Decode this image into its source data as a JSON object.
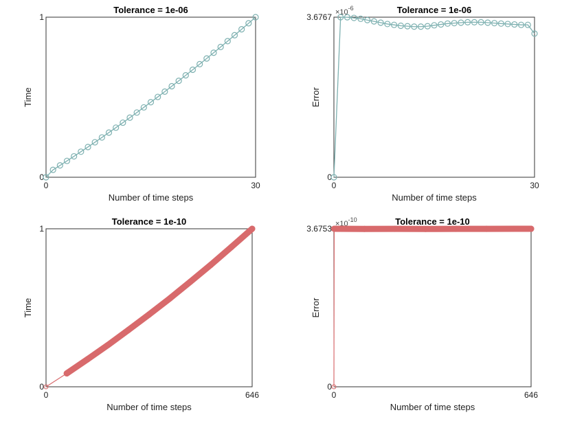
{
  "chart_data": [
    {
      "type": "line",
      "title": "Tolerance = 1e-06",
      "xlabel": "Number of time steps",
      "ylabel": "Time",
      "xlim": [
        0,
        30
      ],
      "ylim": [
        0,
        1
      ],
      "xticks": [
        "0",
        "30"
      ],
      "yticks": [
        "0",
        "1"
      ],
      "color": "#7db0b0",
      "marker": "circle",
      "x": [
        0,
        1,
        2,
        3,
        4,
        5,
        6,
        7,
        8,
        9,
        10,
        11,
        12,
        13,
        14,
        15,
        16,
        17,
        18,
        19,
        20,
        21,
        22,
        23,
        24,
        25,
        26,
        27,
        28,
        29,
        30
      ],
      "y": [
        0,
        0.046,
        0.0739,
        0.1021,
        0.1307,
        0.1597,
        0.189,
        0.2186,
        0.2487,
        0.2791,
        0.3098,
        0.3409,
        0.3724,
        0.4042,
        0.4364,
        0.4689,
        0.5018,
        0.535,
        0.5686,
        0.6026,
        0.6369,
        0.6716,
        0.7066,
        0.742,
        0.7778,
        0.8139,
        0.8504,
        0.8872,
        0.9244,
        0.9619,
        1.0
      ]
    },
    {
      "type": "line",
      "title": "Tolerance = 1e-06",
      "xlabel": "Number of time steps",
      "ylabel": "Error",
      "xlim": [
        0,
        30
      ],
      "ylim": [
        0,
        3.6767
      ],
      "xticks": [
        "0",
        "30"
      ],
      "yticks": [
        "0",
        "3.6767"
      ],
      "exponent_base": "×10",
      "exponent": "-6",
      "color": "#7db0b0",
      "marker": "circle",
      "x": [
        0,
        1,
        2,
        3,
        4,
        5,
        6,
        7,
        8,
        9,
        10,
        11,
        12,
        13,
        14,
        15,
        16,
        17,
        18,
        19,
        20,
        21,
        22,
        23,
        24,
        25,
        26,
        27,
        28,
        29,
        30
      ],
      "y": [
        0,
        3.677,
        3.675,
        3.66,
        3.64,
        3.61,
        3.58,
        3.55,
        3.52,
        3.5,
        3.48,
        3.47,
        3.46,
        3.46,
        3.47,
        3.49,
        3.51,
        3.53,
        3.54,
        3.55,
        3.56,
        3.56,
        3.56,
        3.55,
        3.54,
        3.53,
        3.52,
        3.51,
        3.5,
        3.5,
        3.3
      ]
    },
    {
      "type": "line",
      "title": "Tolerance = 1e-10",
      "xlabel": "Number of time steps",
      "ylabel": "Time",
      "xlim": [
        0,
        646
      ],
      "ylim": [
        0,
        1
      ],
      "xticks": [
        "0",
        "646"
      ],
      "yticks": [
        "0",
        "1"
      ],
      "color": "#d86a6c",
      "marker": "circle-dense",
      "x": [
        0,
        65,
        129,
        194,
        258,
        323,
        388,
        452,
        517,
        581,
        646
      ],
      "y": [
        0,
        0.0847,
        0.1728,
        0.2643,
        0.3592,
        0.4575,
        0.5592,
        0.6643,
        0.7728,
        0.8847,
        1.0
      ]
    },
    {
      "type": "line",
      "title": "Tolerance = 1e-10",
      "xlabel": "Number of time steps",
      "ylabel": "Error",
      "xlim": [
        0,
        646
      ],
      "ylim": [
        0,
        3.6753
      ],
      "xticks": [
        "0",
        "646"
      ],
      "yticks": [
        "0",
        "3.6753"
      ],
      "exponent_base": "×10",
      "exponent": "-10",
      "color": "#d86a6c",
      "marker": "circle-dense",
      "x": [
        0,
        1,
        100,
        200,
        300,
        400,
        500,
        600,
        646
      ],
      "y": [
        0,
        3.6753,
        3.672,
        3.674,
        3.671,
        3.674,
        3.673,
        3.6745,
        3.6745
      ]
    }
  ]
}
